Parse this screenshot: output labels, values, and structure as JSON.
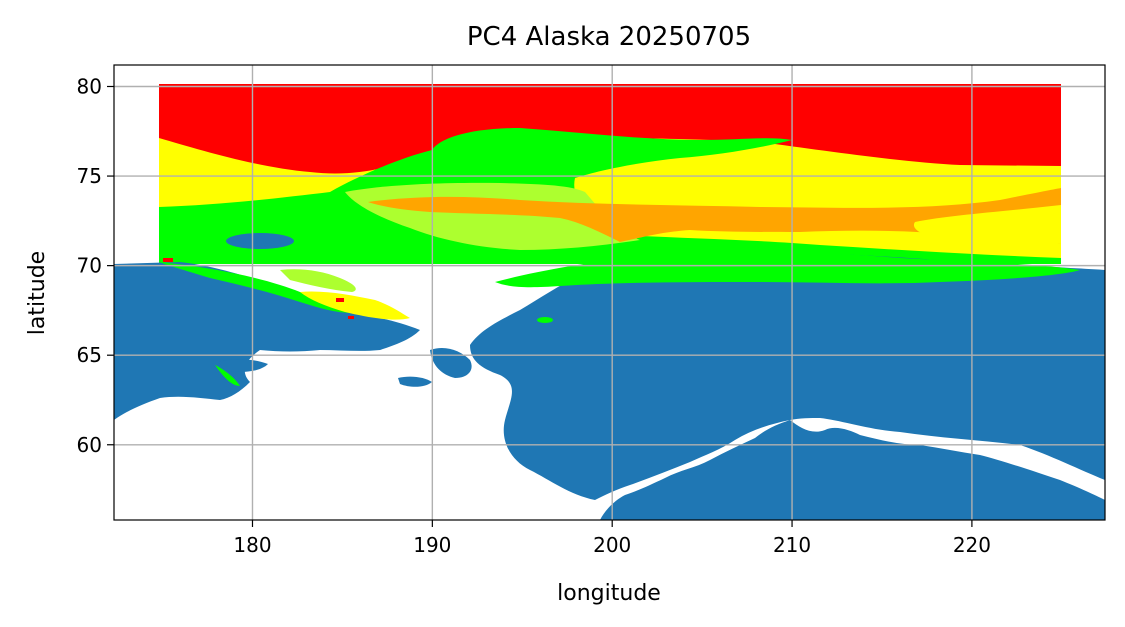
{
  "chart_data": {
    "type": "map",
    "title": "PC4 Alaska 20250705",
    "xlabel": "longitude",
    "ylabel": "latitude",
    "xlim": [
      172.3,
      227.4
    ],
    "ylim": [
      55.8,
      81.2
    ],
    "xticks": [
      180,
      190,
      200,
      210,
      220
    ],
    "yticks": [
      60,
      65,
      70,
      75,
      80
    ],
    "grid": true,
    "ice_extent": {
      "lon": [
        175,
        225
      ],
      "lat": [
        70,
        80
      ]
    },
    "colors": {
      "land": "#1f77b4",
      "ocean": "#ffffff",
      "grid": "#b0b0b0",
      "category_red": "#ff0000",
      "category_green": "#00ff00",
      "category_yellow": "#ffff00",
      "category_lightgreen": "#adff2f",
      "category_orange": "#ffa500"
    }
  }
}
